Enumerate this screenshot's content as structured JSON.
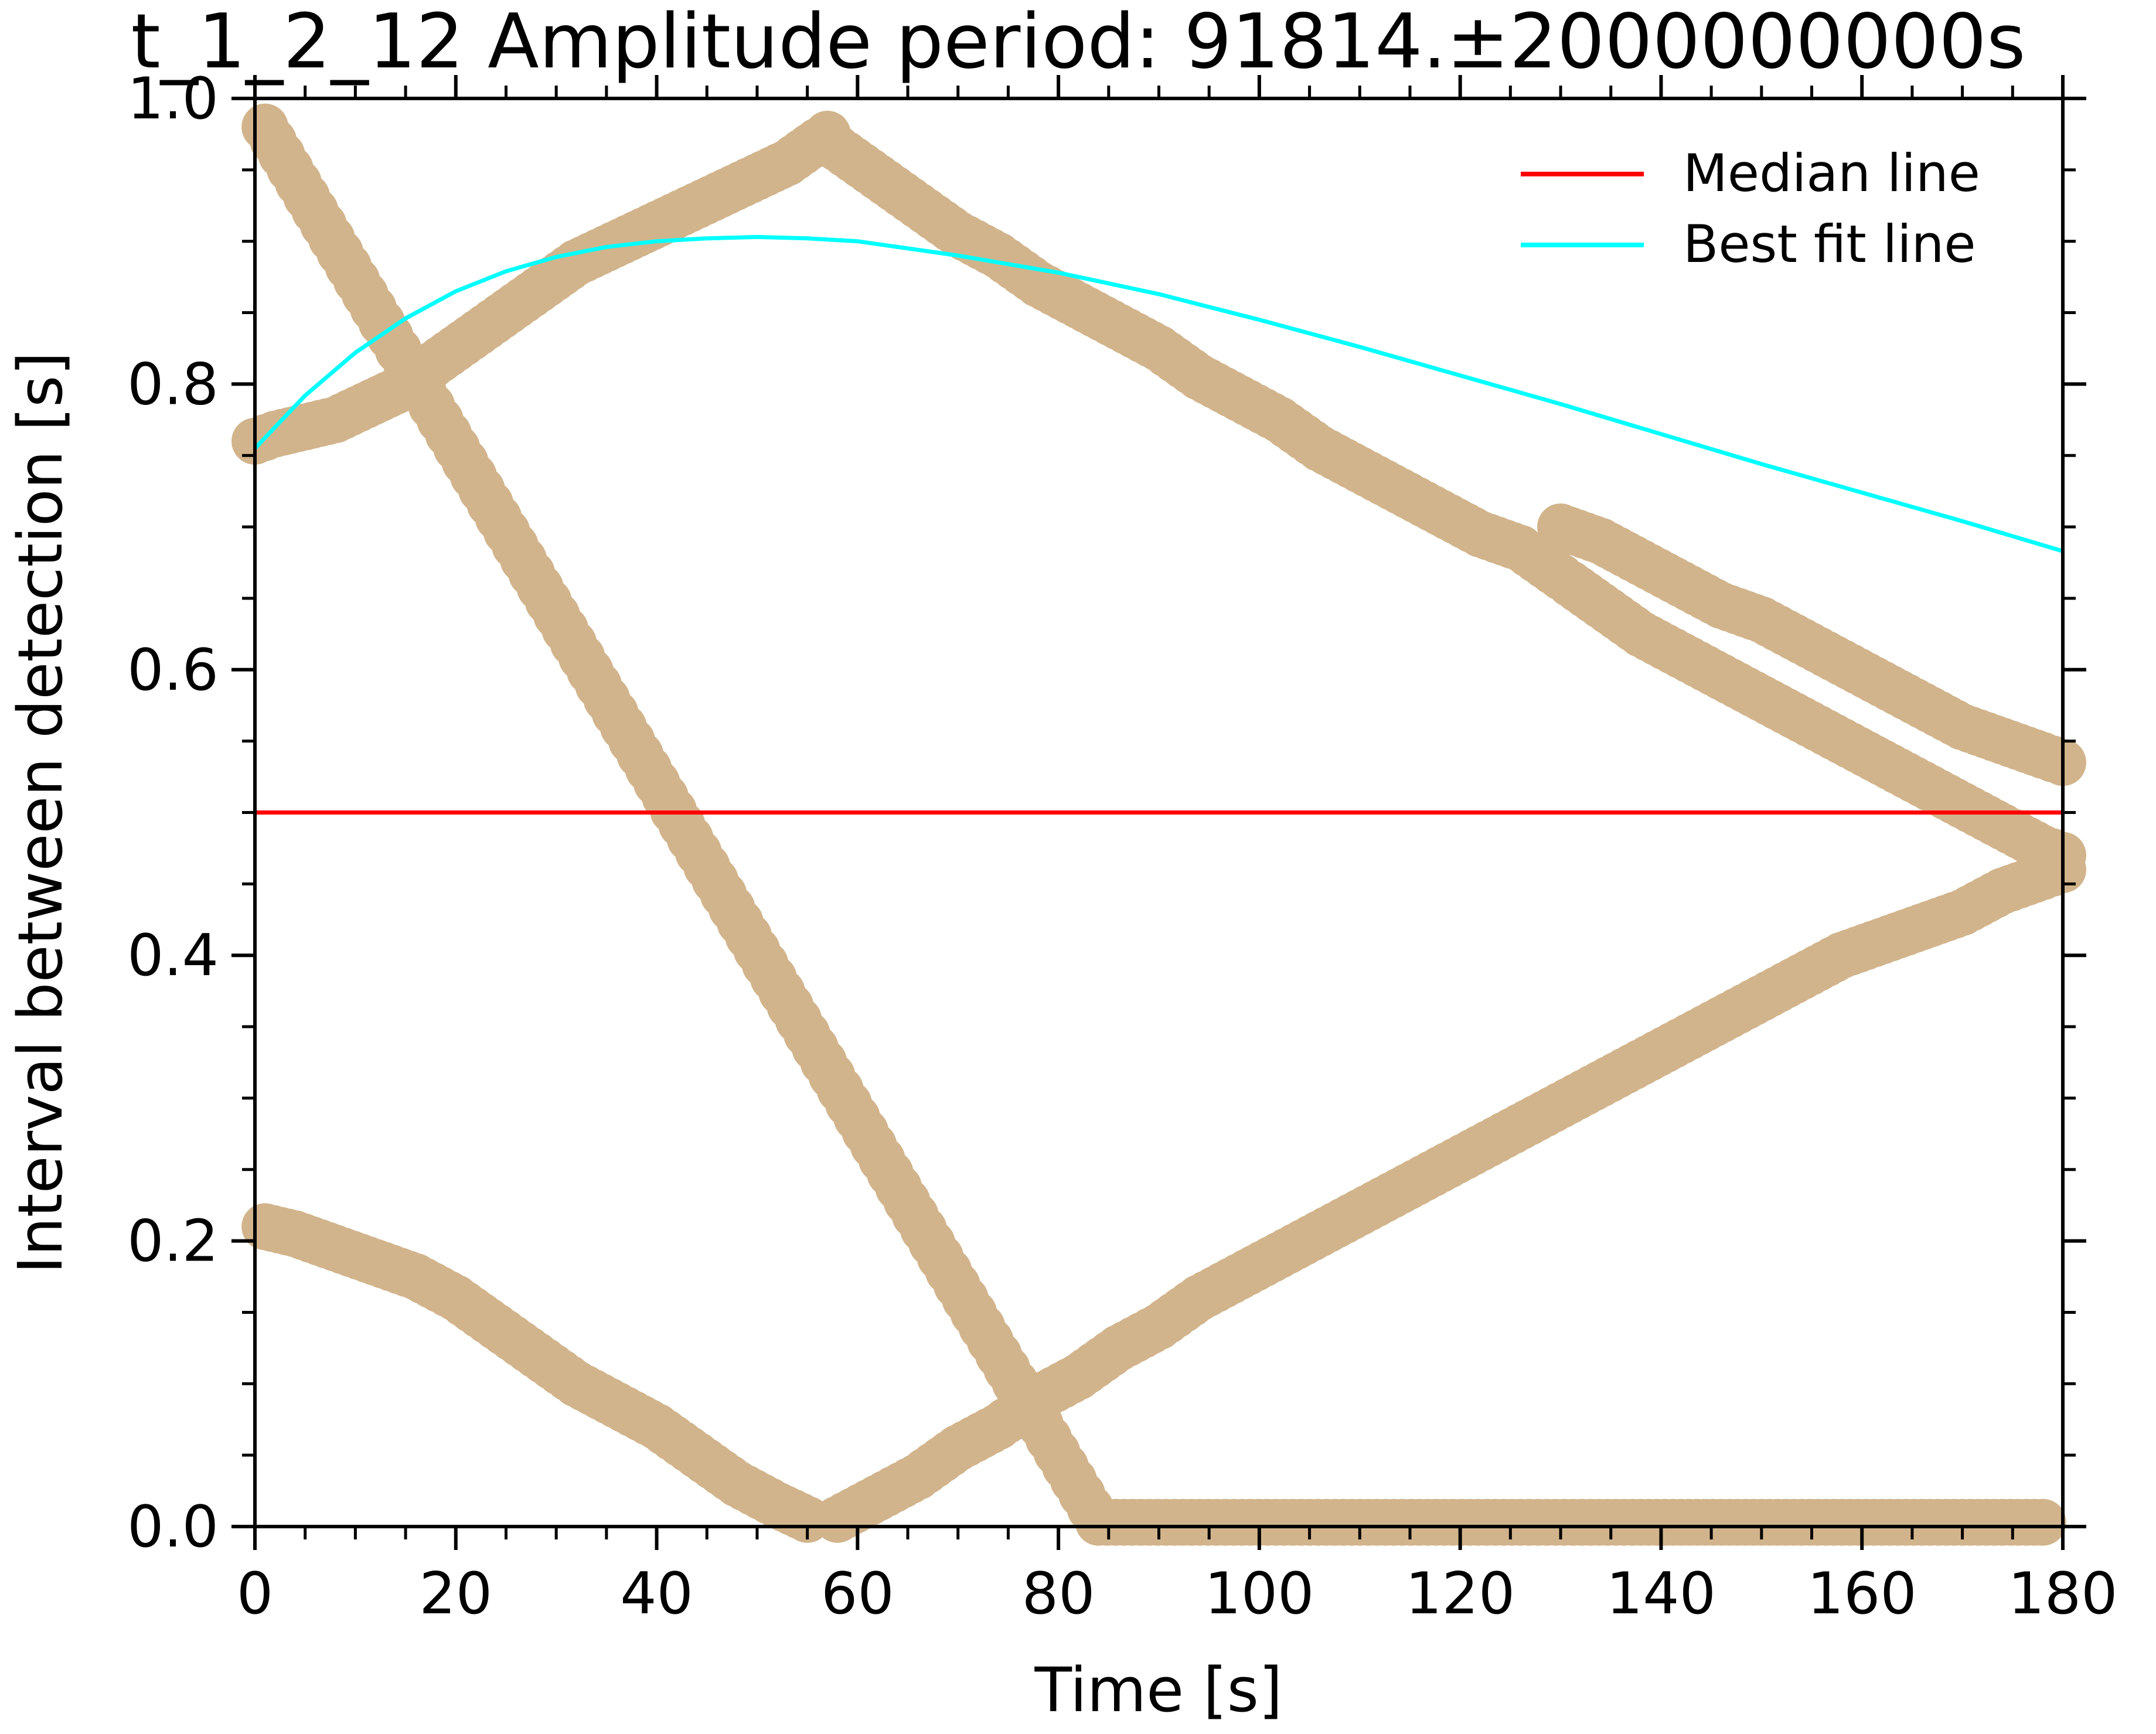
{
  "chart_data": {
    "type": "scatter",
    "title": "t_1_2_12 Amplitude period: 91814.±2000000000s",
    "xlabel": "Time [s]",
    "ylabel": "Interval between detection [s]",
    "xlim": [
      0,
      180
    ],
    "ylim": [
      0,
      1.0
    ],
    "x_ticks": [
      0,
      20,
      40,
      60,
      80,
      100,
      120,
      140,
      160,
      180
    ],
    "x_tick_labels": [
      "0",
      "20",
      "40",
      "60",
      "80",
      "100",
      "120",
      "140",
      "160",
      "180"
    ],
    "y_ticks": [
      0.0,
      0.2,
      0.4,
      0.6,
      0.8,
      1.0
    ],
    "y_tick_labels": [
      "0.0",
      "0.2",
      "0.4",
      "0.6",
      "0.8",
      "1.0"
    ],
    "grid": false,
    "legend_position": "top-right",
    "legend": [
      {
        "label": "Median line",
        "color": "#ff0000"
      },
      {
        "label": "Best fit line",
        "color": "#00ffff"
      }
    ],
    "point_color": "#d2b48c",
    "median_line": {
      "name": "Median line",
      "y": 0.5,
      "color": "#ff0000"
    },
    "best_fit_line": {
      "name": "Best fit line",
      "color": "#00ffff",
      "x": [
        0,
        5,
        10,
        15,
        20,
        25,
        30,
        35,
        40,
        45,
        50,
        55,
        60,
        65,
        70,
        80,
        90,
        100,
        110,
        120,
        130,
        140,
        150,
        160,
        170,
        180
      ],
      "y": [
        0.755,
        0.792,
        0.822,
        0.846,
        0.865,
        0.879,
        0.889,
        0.896,
        0.9,
        0.902,
        0.903,
        0.902,
        0.9,
        0.895,
        0.89,
        0.878,
        0.863,
        0.845,
        0.826,
        0.806,
        0.786,
        0.765,
        0.744,
        0.724,
        0.704,
        0.683
      ]
    },
    "point_groups": [
      {
        "x": [
          0,
          2,
          5,
          8,
          11,
          14,
          17,
          20,
          23,
          26,
          29,
          32,
          35,
          38,
          41,
          44,
          47,
          50,
          53,
          56,
          57
        ],
        "y": [
          0.76,
          0.765,
          0.77,
          0.775,
          0.785,
          0.795,
          0.81,
          0.825,
          0.84,
          0.855,
          0.87,
          0.885,
          0.895,
          0.905,
          0.915,
          0.925,
          0.935,
          0.945,
          0.955,
          0.97,
          0.975
        ]
      },
      {
        "x": [
          58,
          62,
          66,
          70,
          74,
          78,
          82,
          86,
          90,
          94,
          98,
          102,
          106,
          110,
          114,
          118,
          122,
          126,
          130
        ],
        "y": [
          0.965,
          0.945,
          0.925,
          0.905,
          0.89,
          0.87,
          0.855,
          0.84,
          0.825,
          0.805,
          0.79,
          0.775,
          0.755,
          0.74,
          0.725,
          0.71,
          0.695,
          0.685,
          0.665
        ]
      },
      {
        "x": [
          131,
          134,
          138,
          142,
          146,
          150,
          154,
          158,
          162,
          166,
          170,
          174,
          178,
          180
        ],
        "y": [
          0.66,
          0.645,
          0.625,
          0.61,
          0.595,
          0.58,
          0.565,
          0.55,
          0.535,
          0.52,
          0.505,
          0.49,
          0.475,
          0.47
        ]
      },
      {
        "x": [
          130,
          134,
          138,
          142,
          146,
          150,
          154,
          158,
          162,
          166,
          170,
          174,
          178,
          180
        ],
        "y": [
          0.7,
          0.69,
          0.675,
          0.66,
          0.645,
          0.635,
          0.62,
          0.605,
          0.59,
          0.575,
          0.56,
          0.55,
          0.54,
          0.535
        ]
      },
      {
        "x": [
          1,
          4,
          8,
          12,
          16,
          20,
          24,
          28,
          32,
          36,
          40,
          44,
          48,
          52,
          55
        ],
        "y": [
          0.21,
          0.205,
          0.195,
          0.185,
          0.175,
          0.16,
          0.14,
          0.12,
          0.1,
          0.085,
          0.07,
          0.05,
          0.03,
          0.015,
          0.005
        ]
      },
      {
        "x": [
          58,
          62,
          66,
          70,
          74,
          78,
          82,
          86,
          90,
          94,
          98,
          102,
          106,
          110,
          114,
          118,
          122,
          126,
          130,
          134,
          138,
          142,
          146,
          150,
          154,
          158,
          162,
          166,
          170,
          174,
          178,
          180
        ],
        "y": [
          0.005,
          0.02,
          0.035,
          0.055,
          0.07,
          0.09,
          0.105,
          0.125,
          0.14,
          0.16,
          0.175,
          0.19,
          0.205,
          0.22,
          0.235,
          0.25,
          0.265,
          0.28,
          0.295,
          0.31,
          0.325,
          0.34,
          0.355,
          0.37,
          0.385,
          0.4,
          0.41,
          0.42,
          0.43,
          0.445,
          0.455,
          0.46
        ]
      },
      {
        "x": [
          1,
          84,
          126,
          133,
          138,
          142,
          146,
          150,
          154,
          158,
          162,
          166,
          170,
          174,
          178
        ],
        "y": [
          0.98,
          0.003,
          0.003,
          0.003,
          0.003,
          0.003,
          0.003,
          0.003,
          0.003,
          0.003,
          0.003,
          0.003,
          0.003,
          0.003,
          0.003
        ]
      }
    ]
  }
}
